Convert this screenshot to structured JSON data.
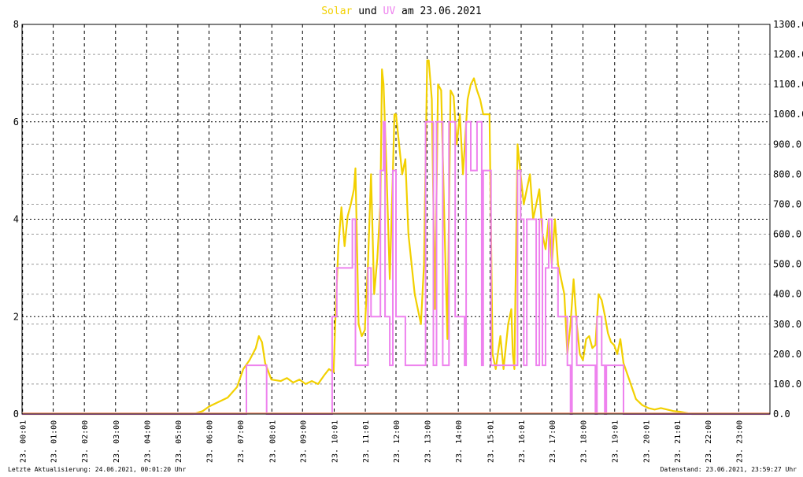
{
  "colors": {
    "solar": "#f2d000",
    "uv": "#ee82ee",
    "overlap": "#f4a283",
    "grid": "#000000",
    "minorgrid": "#9a9a9a"
  },
  "title": {
    "part_solar": "Solar",
    "part_und": " und ",
    "part_uv": "UV",
    "part_rest": " am 23.06.2021"
  },
  "footer": {
    "left": "Letzte Aktualisierung: 24.06.2021, 00:01:20 Uhr",
    "right": "Datenstand: 23.06.2021, 23:59:27 Uhr"
  },
  "chart_data": {
    "type": "line",
    "title": "Solar und UV am 23.06.2021",
    "y_left": {
      "label": "",
      "range": [
        0,
        8
      ],
      "ticks": [
        "0",
        "2",
        "4",
        "6",
        "8"
      ]
    },
    "y_right": {
      "label": "",
      "range": [
        0,
        1300
      ],
      "ticks": [
        "0.0",
        "100.0",
        "200.0",
        "300.0",
        "400.0",
        "500.0",
        "600.0",
        "700.0",
        "800.0",
        "900.0",
        "1000.0",
        "1100.0",
        "1200.0",
        "1300.0"
      ]
    },
    "x_range_hours": [
      0,
      24
    ],
    "x_ticks": [
      {
        "h": 0.0167,
        "day": "23.",
        "time": "00:01"
      },
      {
        "h": 1,
        "day": "23.",
        "time": "01:00"
      },
      {
        "h": 2,
        "day": "23.",
        "time": "02:00"
      },
      {
        "h": 3,
        "day": "23.",
        "time": "03:00"
      },
      {
        "h": 4,
        "day": "23.",
        "time": "04:00"
      },
      {
        "h": 5,
        "day": "23.",
        "time": "05:00"
      },
      {
        "h": 6,
        "day": "23.",
        "time": "06:00"
      },
      {
        "h": 7,
        "day": "23.",
        "time": "07:00"
      },
      {
        "h": 8.0167,
        "day": "23.",
        "time": "08:01"
      },
      {
        "h": 9,
        "day": "23.",
        "time": "09:00"
      },
      {
        "h": 10.0167,
        "day": "23.",
        "time": "10:01"
      },
      {
        "h": 11.0167,
        "day": "23.",
        "time": "11:01"
      },
      {
        "h": 12,
        "day": "23.",
        "time": "12:00"
      },
      {
        "h": 13,
        "day": "23.",
        "time": "13:00"
      },
      {
        "h": 14,
        "day": "23.",
        "time": "14:00"
      },
      {
        "h": 15.0167,
        "day": "23.",
        "time": "15:01"
      },
      {
        "h": 16.0167,
        "day": "23.",
        "time": "16:01"
      },
      {
        "h": 17,
        "day": "23.",
        "time": "17:00"
      },
      {
        "h": 18,
        "day": "23.",
        "time": "18:00"
      },
      {
        "h": 19.0167,
        "day": "23.",
        "time": "19:01"
      },
      {
        "h": 20.0167,
        "day": "23.",
        "time": "20:01"
      },
      {
        "h": 21.0167,
        "day": "23.",
        "time": "21:01"
      },
      {
        "h": 22,
        "day": "23.",
        "time": "22:00"
      },
      {
        "h": 23,
        "day": "23.",
        "time": "23:00"
      }
    ],
    "grid": true,
    "series": [
      {
        "name": "Solar",
        "axis": "right",
        "points": [
          [
            0,
            0
          ],
          [
            5.5,
            0
          ],
          [
            5.8,
            10
          ],
          [
            6.0,
            25
          ],
          [
            6.3,
            40
          ],
          [
            6.6,
            55
          ],
          [
            6.9,
            90
          ],
          [
            7.1,
            150
          ],
          [
            7.3,
            180
          ],
          [
            7.5,
            220
          ],
          [
            7.6,
            260
          ],
          [
            7.7,
            240
          ],
          [
            7.8,
            170
          ],
          [
            8.0,
            115
          ],
          [
            8.3,
            110
          ],
          [
            8.5,
            120
          ],
          [
            8.7,
            105
          ],
          [
            8.9,
            115
          ],
          [
            9.1,
            100
          ],
          [
            9.3,
            110
          ],
          [
            9.5,
            100
          ],
          [
            9.7,
            130
          ],
          [
            9.85,
            150
          ],
          [
            10.0,
            140
          ],
          [
            10.05,
            300
          ],
          [
            10.15,
            560
          ],
          [
            10.25,
            690
          ],
          [
            10.35,
            560
          ],
          [
            10.45,
            660
          ],
          [
            10.55,
            700
          ],
          [
            10.65,
            750
          ],
          [
            10.7,
            820
          ],
          [
            10.8,
            300
          ],
          [
            10.9,
            260
          ],
          [
            11.0,
            280
          ],
          [
            11.1,
            500
          ],
          [
            11.2,
            800
          ],
          [
            11.3,
            400
          ],
          [
            11.4,
            520
          ],
          [
            11.5,
            700
          ],
          [
            11.55,
            1150
          ],
          [
            11.6,
            1100
          ],
          [
            11.7,
            800
          ],
          [
            11.8,
            450
          ],
          [
            11.9,
            800
          ],
          [
            11.95,
            1000
          ],
          [
            12.0,
            1000
          ],
          [
            12.2,
            800
          ],
          [
            12.3,
            850
          ],
          [
            12.4,
            600
          ],
          [
            12.6,
            400
          ],
          [
            12.8,
            300
          ],
          [
            12.9,
            500
          ],
          [
            13.0,
            1180
          ],
          [
            13.05,
            1180
          ],
          [
            13.15,
            1050
          ],
          [
            13.25,
            350
          ],
          [
            13.35,
            1100
          ],
          [
            13.45,
            1080
          ],
          [
            13.55,
            650
          ],
          [
            13.65,
            250
          ],
          [
            13.75,
            1080
          ],
          [
            13.85,
            1060
          ],
          [
            13.95,
            900
          ],
          [
            14.05,
            1000
          ],
          [
            14.15,
            800
          ],
          [
            14.3,
            1050
          ],
          [
            14.4,
            1100
          ],
          [
            14.5,
            1120
          ],
          [
            14.6,
            1080
          ],
          [
            14.7,
            1050
          ],
          [
            14.8,
            1000
          ],
          [
            15.0,
            1000
          ],
          [
            15.1,
            200
          ],
          [
            15.2,
            150
          ],
          [
            15.35,
            260
          ],
          [
            15.45,
            150
          ],
          [
            15.6,
            300
          ],
          [
            15.7,
            350
          ],
          [
            15.75,
            200
          ],
          [
            15.8,
            150
          ],
          [
            15.9,
            900
          ],
          [
            16.0,
            800
          ],
          [
            16.1,
            700
          ],
          [
            16.2,
            750
          ],
          [
            16.3,
            800
          ],
          [
            16.4,
            650
          ],
          [
            16.6,
            750
          ],
          [
            16.7,
            600
          ],
          [
            16.8,
            550
          ],
          [
            16.9,
            650
          ],
          [
            17.0,
            500
          ],
          [
            17.1,
            650
          ],
          [
            17.2,
            500
          ],
          [
            17.3,
            450
          ],
          [
            17.4,
            400
          ],
          [
            17.5,
            200
          ],
          [
            17.6,
            300
          ],
          [
            17.7,
            450
          ],
          [
            17.8,
            300
          ],
          [
            17.9,
            200
          ],
          [
            18.0,
            180
          ],
          [
            18.1,
            250
          ],
          [
            18.2,
            260
          ],
          [
            18.3,
            220
          ],
          [
            18.4,
            230
          ],
          [
            18.5,
            400
          ],
          [
            18.6,
            380
          ],
          [
            18.7,
            330
          ],
          [
            18.8,
            270
          ],
          [
            18.9,
            240
          ],
          [
            19.0,
            230
          ],
          [
            19.1,
            200
          ],
          [
            19.2,
            250
          ],
          [
            19.3,
            170
          ],
          [
            19.5,
            110
          ],
          [
            19.7,
            50
          ],
          [
            19.9,
            30
          ],
          [
            20.1,
            20
          ],
          [
            20.3,
            15
          ],
          [
            20.5,
            20
          ],
          [
            20.7,
            15
          ],
          [
            20.9,
            10
          ],
          [
            21.1,
            8
          ],
          [
            21.3,
            4
          ],
          [
            21.5,
            0
          ],
          [
            24,
            0
          ]
        ]
      },
      {
        "name": "UV",
        "axis": "left",
        "points": [
          [
            0,
            0
          ],
          [
            7.2,
            0
          ],
          [
            7.2,
            1
          ],
          [
            7.85,
            1
          ],
          [
            7.85,
            0
          ],
          [
            9.95,
            0
          ],
          [
            9.95,
            2
          ],
          [
            10.1,
            2
          ],
          [
            10.1,
            3
          ],
          [
            10.6,
            3
          ],
          [
            10.6,
            4
          ],
          [
            10.7,
            4
          ],
          [
            10.7,
            1
          ],
          [
            11.1,
            1
          ],
          [
            11.1,
            3
          ],
          [
            11.2,
            3
          ],
          [
            11.2,
            2
          ],
          [
            11.5,
            2
          ],
          [
            11.5,
            5
          ],
          [
            11.6,
            5
          ],
          [
            11.6,
            6
          ],
          [
            11.65,
            6
          ],
          [
            11.65,
            2
          ],
          [
            11.8,
            2
          ],
          [
            11.8,
            1
          ],
          [
            11.9,
            1
          ],
          [
            11.9,
            5
          ],
          [
            12.0,
            5
          ],
          [
            12.0,
            2
          ],
          [
            12.3,
            2
          ],
          [
            12.3,
            1
          ],
          [
            12.95,
            1
          ],
          [
            12.95,
            6
          ],
          [
            13.2,
            6
          ],
          [
            13.2,
            1
          ],
          [
            13.3,
            1
          ],
          [
            13.3,
            6
          ],
          [
            13.5,
            6
          ],
          [
            13.5,
            1
          ],
          [
            13.7,
            1
          ],
          [
            13.7,
            6
          ],
          [
            13.9,
            6
          ],
          [
            13.9,
            2
          ],
          [
            14.2,
            2
          ],
          [
            14.2,
            1
          ],
          [
            14.25,
            1
          ],
          [
            14.25,
            6
          ],
          [
            14.4,
            6
          ],
          [
            14.4,
            5
          ],
          [
            14.6,
            5
          ],
          [
            14.6,
            6
          ],
          [
            14.75,
            6
          ],
          [
            14.75,
            1
          ],
          [
            14.8,
            1
          ],
          [
            14.8,
            5
          ],
          [
            15.05,
            5
          ],
          [
            15.05,
            1
          ],
          [
            15.9,
            1
          ],
          [
            15.9,
            5
          ],
          [
            16.0,
            5
          ],
          [
            16.0,
            4
          ],
          [
            16.1,
            4
          ],
          [
            16.1,
            1
          ],
          [
            16.2,
            1
          ],
          [
            16.2,
            4
          ],
          [
            16.5,
            4
          ],
          [
            16.5,
            1
          ],
          [
            16.6,
            1
          ],
          [
            16.6,
            4
          ],
          [
            16.7,
            4
          ],
          [
            16.7,
            1
          ],
          [
            16.8,
            1
          ],
          [
            16.8,
            3
          ],
          [
            16.9,
            3
          ],
          [
            16.9,
            4
          ],
          [
            17.0,
            4
          ],
          [
            17.0,
            3
          ],
          [
            17.2,
            3
          ],
          [
            17.2,
            2
          ],
          [
            17.5,
            2
          ],
          [
            17.5,
            1
          ],
          [
            17.6,
            1
          ],
          [
            17.6,
            0
          ],
          [
            17.65,
            0
          ],
          [
            17.65,
            2
          ],
          [
            17.8,
            2
          ],
          [
            17.8,
            1
          ],
          [
            18.4,
            1
          ],
          [
            18.4,
            0
          ],
          [
            18.45,
            0
          ],
          [
            18.45,
            2
          ],
          [
            18.6,
            2
          ],
          [
            18.6,
            1
          ],
          [
            18.7,
            1
          ],
          [
            18.7,
            0
          ],
          [
            18.75,
            0
          ],
          [
            18.75,
            1
          ],
          [
            19.3,
            1
          ],
          [
            19.3,
            0
          ],
          [
            24,
            0
          ]
        ]
      }
    ]
  }
}
